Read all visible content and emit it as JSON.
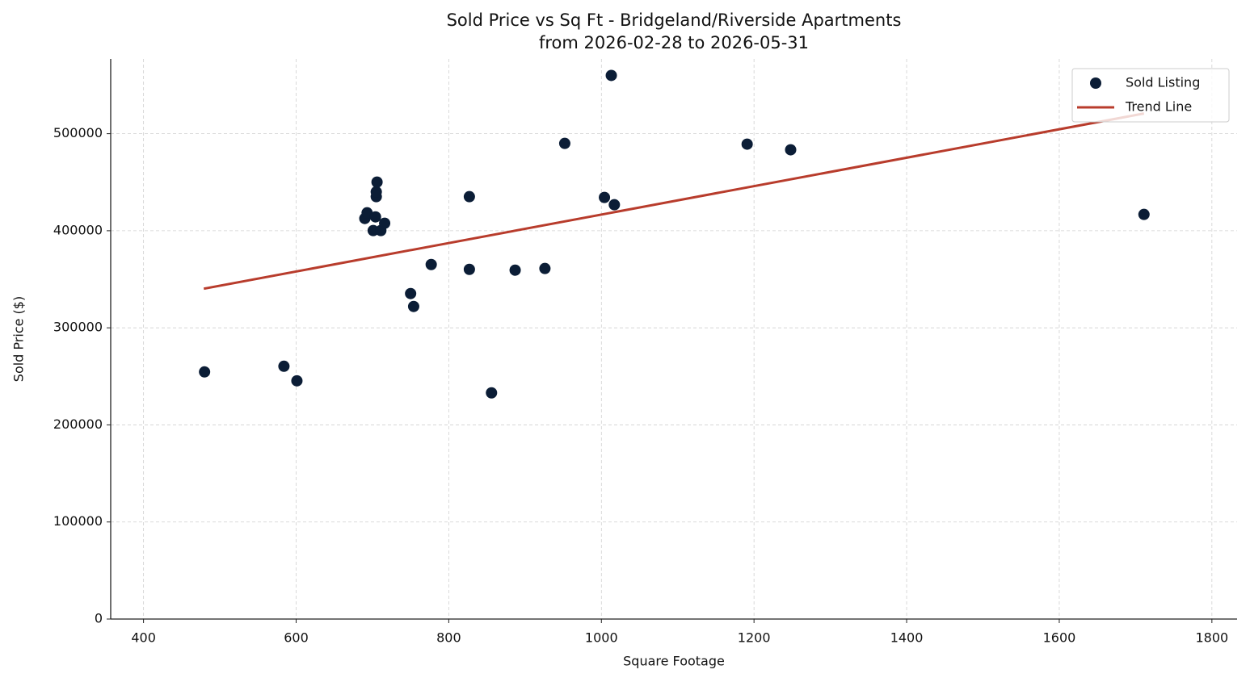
{
  "chart_data": {
    "type": "scatter",
    "title": "Sold Price vs Sq Ft - Bridgeland/Riverside Apartments",
    "subtitle": "from 2026-02-28 to 2026-05-31",
    "x_label": "Square Footage",
    "y_label": "Sold Price ($)",
    "xlim": [
      357,
      1833
    ],
    "ylim": [
      0,
      577000
    ],
    "xticks": [
      400,
      600,
      800,
      1000,
      1200,
      1400,
      1600,
      1800
    ],
    "yticks": [
      0,
      100000,
      200000,
      300000,
      400000,
      500000
    ],
    "grid": true,
    "legend": "upper right",
    "series": [
      {
        "name": "Sold Listing",
        "color": "#0b1d36",
        "style": "points",
        "x": [
          480,
          584,
          601,
          856,
          690,
          693,
          701,
          704,
          705,
          705,
          706,
          711,
          716,
          750,
          754,
          777,
          827,
          827,
          887,
          926,
          952,
          1004,
          1013,
          1017,
          1191,
          1248,
          1711
        ],
        "values": [
          254600,
          260400,
          245400,
          233000,
          412600,
          418500,
          400200,
          414300,
          435100,
          440100,
          450100,
          400200,
          407700,
          335300,
          322000,
          365200,
          435100,
          360200,
          359400,
          361100,
          490000,
          434300,
          560000,
          426800,
          489200,
          483400,
          416800
        ]
      },
      {
        "name": "Trend Line",
        "color": "#b83c2c",
        "style": "line",
        "x": [
          479,
          1711
        ],
        "values": [
          340300,
          520800
        ]
      }
    ]
  }
}
